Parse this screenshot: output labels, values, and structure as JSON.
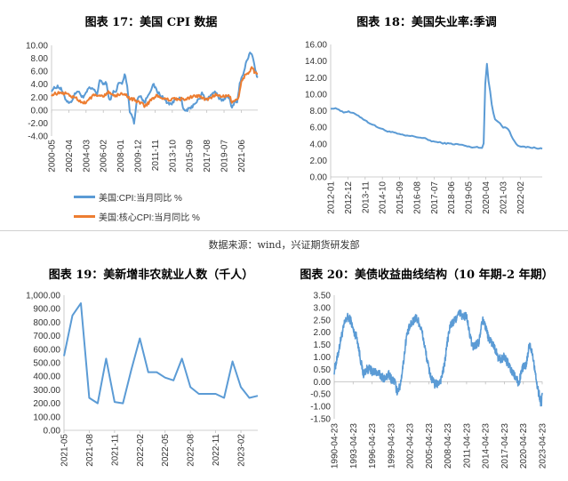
{
  "source_note": "数据来源：wind，兴证期货研发部",
  "chart_data": [
    {
      "id": "cpi",
      "type": "line",
      "title": "图表 17：美国 CPI 数据",
      "x_ticks": [
        "2000-05",
        "2002-04",
        "2004-03",
        "2006-02",
        "2008-01",
        "2009-12",
        "2011-11",
        "2013-10",
        "2015-09",
        "2017-08",
        "2019-07",
        "2021-06"
      ],
      "ylim": [
        -4,
        10
      ],
      "y_ticks": [
        "-4.00",
        "-2.00",
        "0.00",
        "2.00",
        "4.00",
        "6.00",
        "8.00",
        "10.00"
      ],
      "x_range": [
        "2000-05",
        "2023-04"
      ],
      "series": [
        {
          "name": "美国:CPI:当月同比 %",
          "color": "#5b9bd5",
          "x": [
            "2000-05",
            "2001-01",
            "2001-06",
            "2001-12",
            "2002-06",
            "2002-12",
            "2003-03",
            "2003-12",
            "2004-06",
            "2004-12",
            "2005-06",
            "2005-09",
            "2006-01",
            "2006-06",
            "2006-10",
            "2007-03",
            "2007-06",
            "2007-11",
            "2008-03",
            "2008-07",
            "2008-10",
            "2009-01",
            "2009-04",
            "2009-07",
            "2009-11",
            "2010-03",
            "2010-09",
            "2011-03",
            "2011-09",
            "2012-03",
            "2012-09",
            "2013-04",
            "2013-10",
            "2014-04",
            "2014-10",
            "2015-01",
            "2015-05",
            "2015-10",
            "2016-04",
            "2016-10",
            "2017-02",
            "2017-06",
            "2017-12",
            "2018-07",
            "2019-01",
            "2019-06",
            "2019-12",
            "2020-03",
            "2020-05",
            "2020-09",
            "2021-01",
            "2021-04",
            "2021-08",
            "2022-01",
            "2022-06",
            "2022-09",
            "2022-12",
            "2023-04"
          ],
          "y": [
            3.1,
            3.7,
            3.2,
            1.6,
            1.1,
            2.4,
            3.0,
            1.9,
            3.3,
            3.3,
            2.5,
            4.7,
            4.0,
            4.3,
            1.3,
            2.8,
            2.7,
            4.3,
            4.0,
            5.6,
            3.7,
            0.0,
            -0.7,
            -2.1,
            1.8,
            2.3,
            1.1,
            2.7,
            3.9,
            2.7,
            2.0,
            1.1,
            1.0,
            2.0,
            1.7,
            -0.1,
            0.0,
            0.2,
            1.1,
            1.6,
            2.7,
            1.6,
            2.1,
            2.9,
            1.6,
            1.6,
            2.3,
            1.5,
            0.1,
            1.4,
            1.4,
            4.2,
            5.3,
            7.5,
            9.1,
            8.2,
            6.5,
            4.9
          ]
        },
        {
          "name": "美国:核心CPI:当月同比 %",
          "color": "#ed7d31",
          "x": [
            "2000-05",
            "2001-06",
            "2002-03",
            "2003-06",
            "2004-01",
            "2004-12",
            "2006-01",
            "2006-09",
            "2007-06",
            "2008-01",
            "2008-07",
            "2009-01",
            "2009-06",
            "2010-03",
            "2010-10",
            "2011-06",
            "2012-01",
            "2012-08",
            "2013-06",
            "2014-03",
            "2014-09",
            "2015-05",
            "2016-01",
            "2016-09",
            "2017-05",
            "2018-01",
            "2018-07",
            "2019-03",
            "2019-12",
            "2020-03",
            "2020-05",
            "2020-10",
            "2021-01",
            "2021-04",
            "2021-06",
            "2021-12",
            "2022-05",
            "2022-09",
            "2022-12",
            "2023-04"
          ],
          "y": [
            2.4,
            2.7,
            2.5,
            1.5,
            1.1,
            2.2,
            2.1,
            2.9,
            2.2,
            2.5,
            2.5,
            1.7,
            1.7,
            1.1,
            0.6,
            1.6,
            2.3,
            1.9,
            1.6,
            1.7,
            1.7,
            1.7,
            2.2,
            2.2,
            1.7,
            1.8,
            2.4,
            2.0,
            2.3,
            2.1,
            1.2,
            1.6,
            1.4,
            3.0,
            4.5,
            5.5,
            6.0,
            6.6,
            5.7,
            5.5
          ]
        }
      ]
    },
    {
      "id": "unemp",
      "type": "line",
      "title": "图表 18：美国失业率:季调",
      "x_ticks": [
        "2012-01",
        "2012-12",
        "2013-11",
        "2014-10",
        "2015-09",
        "2016-08",
        "2017-07",
        "2018-06",
        "2019-05",
        "2020-04",
        "2021-03",
        "2022-02"
      ],
      "ylim": [
        0,
        16
      ],
      "y_ticks": [
        "0.00",
        "2.00",
        "4.00",
        "6.00",
        "8.00",
        "10.00",
        "12.00",
        "14.00",
        "16.00"
      ],
      "x_range": [
        "2012-01",
        "2023-04"
      ],
      "series": [
        {
          "name": "美国失业率:季调",
          "color": "#5b9bd5",
          "x": [
            "2012-01",
            "2012-06",
            "2012-09",
            "2012-12",
            "2013-06",
            "2013-12",
            "2014-06",
            "2014-12",
            "2015-06",
            "2015-12",
            "2016-06",
            "2016-12",
            "2017-06",
            "2017-12",
            "2018-06",
            "2018-12",
            "2019-06",
            "2019-12",
            "2020-02",
            "2020-03",
            "2020-04",
            "2020-05",
            "2020-06",
            "2020-07",
            "2020-08",
            "2020-10",
            "2020-12",
            "2021-03",
            "2021-06",
            "2021-09",
            "2021-12",
            "2022-03",
            "2022-06",
            "2022-12",
            "2023-04"
          ],
          "y": [
            8.3,
            8.2,
            7.8,
            7.9,
            7.5,
            6.7,
            6.1,
            5.6,
            5.3,
            5.0,
            4.9,
            4.7,
            4.3,
            4.1,
            4.0,
            3.9,
            3.6,
            3.6,
            3.5,
            4.4,
            14.7,
            13.2,
            11.0,
            10.2,
            8.4,
            6.9,
            6.7,
            6.0,
            5.9,
            4.7,
            3.9,
            3.6,
            3.6,
            3.5,
            3.4
          ]
        }
      ]
    },
    {
      "id": "nfp",
      "type": "line",
      "title": "图表 19：美新增非农就业人数（千人）",
      "x_ticks": [
        "2021-05",
        "2021-08",
        "2021-11",
        "2022-02",
        "2022-05",
        "2022-08",
        "2022-11",
        "2023-02"
      ],
      "ylim": [
        0,
        1000
      ],
      "y_ticks": [
        "0.00",
        "100.00",
        "200.00",
        "300.00",
        "400.00",
        "500.00",
        "600.00",
        "700.00",
        "800.00",
        "900.00",
        "1,000.00"
      ],
      "x_range": [
        "2021-05",
        "2023-04"
      ],
      "series": [
        {
          "name": "美新增非农就业人数",
          "color": "#5b9bd5",
          "x": [
            "2021-05",
            "2021-06",
            "2021-07",
            "2021-08",
            "2021-09",
            "2021-10",
            "2021-11",
            "2021-12",
            "2022-01",
            "2022-02",
            "2022-03",
            "2022-04",
            "2022-05",
            "2022-06",
            "2022-07",
            "2022-08",
            "2022-09",
            "2022-10",
            "2022-11",
            "2022-12",
            "2023-01",
            "2023-02",
            "2023-03",
            "2023-04"
          ],
          "y": [
            550,
            850,
            940,
            240,
            200,
            530,
            210,
            200,
            450,
            680,
            430,
            430,
            390,
            370,
            530,
            320,
            270,
            270,
            270,
            240,
            510,
            320,
            240,
            255
          ]
        }
      ]
    },
    {
      "id": "spread",
      "type": "line",
      "title": "图表 20：美债收益曲线结构（10 年期-2 年期）",
      "x_ticks": [
        "1990-04-23",
        "1993-04-23",
        "1996-04-23",
        "1999-04-23",
        "2002-04-23",
        "2005-04-23",
        "2008-04-23",
        "2011-04-23",
        "2014-04-23",
        "2017-04-23",
        "2020-04-23",
        "2023-04-23"
      ],
      "ylim": [
        -1.5,
        3.5
      ],
      "y_ticks": [
        "-1.50",
        "-1.00",
        "-0.50",
        "0.00",
        "0.50",
        "1.00",
        "1.50",
        "2.00",
        "2.50",
        "3.00",
        "3.50"
      ],
      "x_range": [
        "1990-04-23",
        "2023-04-23"
      ],
      "series": [
        {
          "name": "10年期-2年期",
          "color": "#5b9bd5",
          "x": [
            "1990-04",
            "1990-10",
            "1991-06",
            "1992-01",
            "1992-06",
            "1992-12",
            "1993-06",
            "1993-12",
            "1994-06",
            "1994-12",
            "1995-06",
            "1995-12",
            "1996-06",
            "1996-12",
            "1997-06",
            "1997-12",
            "1998-06",
            "1998-12",
            "1999-06",
            "1999-12",
            "2000-04",
            "2000-10",
            "2001-04",
            "2001-10",
            "2002-04",
            "2002-10",
            "2003-04",
            "2003-10",
            "2004-04",
            "2004-10",
            "2005-04",
            "2005-10",
            "2006-04",
            "2006-10",
            "2007-04",
            "2007-10",
            "2008-04",
            "2008-10",
            "2009-04",
            "2009-10",
            "2010-04",
            "2010-10",
            "2011-04",
            "2011-10",
            "2012-04",
            "2012-10",
            "2013-04",
            "2013-10",
            "2014-04",
            "2014-10",
            "2015-04",
            "2015-10",
            "2016-04",
            "2016-10",
            "2017-04",
            "2017-10",
            "2018-04",
            "2018-10",
            "2019-04",
            "2019-08",
            "2019-12",
            "2020-04",
            "2020-10",
            "2021-04",
            "2021-10",
            "2022-04",
            "2022-08",
            "2022-12",
            "2023-03",
            "2023-04"
          ],
          "y": [
            0.4,
            0.9,
            1.8,
            2.4,
            2.6,
            2.5,
            2.0,
            1.8,
            1.0,
            0.3,
            0.5,
            0.5,
            0.4,
            0.4,
            0.3,
            0.2,
            0.1,
            0.3,
            0.1,
            0.0,
            -0.4,
            -0.2,
            0.7,
            1.8,
            2.2,
            2.4,
            2.6,
            2.4,
            2.0,
            1.3,
            0.6,
            0.1,
            -0.1,
            -0.1,
            0.1,
            0.6,
            1.6,
            2.3,
            2.4,
            2.6,
            2.8,
            2.6,
            2.7,
            2.0,
            1.4,
            1.5,
            1.6,
            2.5,
            2.3,
            1.8,
            1.6,
            1.4,
            1.0,
            0.9,
            1.0,
            0.8,
            0.5,
            0.3,
            0.1,
            -0.1,
            0.3,
            0.6,
            0.6,
            1.5,
            1.2,
            0.3,
            -0.3,
            -0.6,
            -1.0,
            -0.5
          ]
        }
      ]
    }
  ]
}
